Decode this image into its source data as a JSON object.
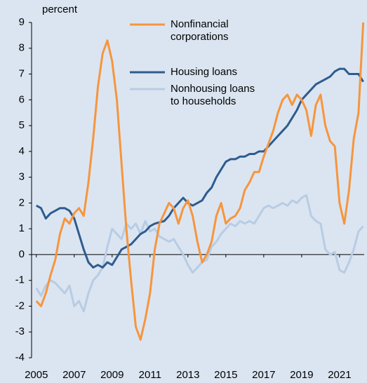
{
  "chart_data": {
    "type": "line",
    "y_label": "percent",
    "x": [
      2005,
      2005.25,
      2005.5,
      2005.75,
      2006,
      2006.25,
      2006.5,
      2006.75,
      2007,
      2007.25,
      2007.5,
      2007.75,
      2008,
      2008.25,
      2008.5,
      2008.75,
      2009,
      2009.25,
      2009.5,
      2009.75,
      2010,
      2010.25,
      2010.5,
      2010.75,
      2011,
      2011.25,
      2011.5,
      2011.75,
      2012,
      2012.25,
      2012.5,
      2012.75,
      2013,
      2013.25,
      2013.5,
      2013.75,
      2014,
      2014.25,
      2014.5,
      2014.75,
      2015,
      2015.25,
      2015.5,
      2015.75,
      2016,
      2016.25,
      2016.5,
      2016.75,
      2017,
      2017.25,
      2017.5,
      2017.75,
      2018,
      2018.25,
      2018.5,
      2018.75,
      2019,
      2019.25,
      2019.5,
      2019.75,
      2020,
      2020.25,
      2020.5,
      2020.75,
      2021,
      2021.25,
      2021.5,
      2021.75,
      2022,
      2022.25
    ],
    "series": [
      {
        "name": "Nonfinancial corporations",
        "color": "#f7953d",
        "values": [
          -1.8,
          -2.0,
          -1.5,
          -0.8,
          -0.2,
          0.8,
          1.4,
          1.2,
          1.6,
          1.8,
          1.5,
          2.8,
          4.5,
          6.5,
          7.8,
          8.3,
          7.5,
          6.0,
          3.5,
          1.0,
          -1.0,
          -2.8,
          -3.3,
          -2.5,
          -1.5,
          0.2,
          1.2,
          1.6,
          2.0,
          1.8,
          1.2,
          1.8,
          2.1,
          1.5,
          0.5,
          -0.3,
          0.0,
          0.5,
          1.5,
          2.0,
          1.2,
          1.4,
          1.5,
          1.8,
          2.5,
          2.8,
          3.2,
          3.2,
          3.8,
          4.3,
          4.8,
          5.5,
          6.0,
          6.2,
          5.8,
          6.2,
          6.0,
          5.6,
          4.6,
          5.8,
          6.2,
          5.0,
          4.4,
          4.2,
          2.0,
          1.2,
          2.5,
          4.5,
          5.5,
          9.0
        ]
      },
      {
        "name": "Housing loans",
        "color": "#2e5c8e",
        "values": [
          1.9,
          1.8,
          1.4,
          1.6,
          1.7,
          1.8,
          1.8,
          1.7,
          1.4,
          0.8,
          0.2,
          -0.3,
          -0.5,
          -0.4,
          -0.5,
          -0.3,
          -0.4,
          -0.1,
          0.2,
          0.3,
          0.4,
          0.6,
          0.8,
          0.9,
          1.1,
          1.2,
          1.25,
          1.3,
          1.5,
          1.8,
          2.0,
          2.2,
          2.0,
          1.9,
          2.0,
          2.1,
          2.4,
          2.6,
          3.0,
          3.3,
          3.6,
          3.7,
          3.7,
          3.8,
          3.8,
          3.9,
          3.9,
          4.0,
          4.0,
          4.2,
          4.4,
          4.6,
          4.8,
          5.0,
          5.3,
          5.6,
          6.0,
          6.2,
          6.4,
          6.6,
          6.7,
          6.8,
          6.9,
          7.1,
          7.2,
          7.2,
          7.0,
          7.0,
          7.0,
          6.7
        ]
      },
      {
        "name": "Nonhousing loans to households",
        "color": "#b8cce4",
        "values": [
          -1.3,
          -1.6,
          -1.2,
          -1.0,
          -1.1,
          -1.3,
          -1.5,
          -1.2,
          -2.0,
          -1.8,
          -2.2,
          -1.5,
          -1.0,
          -0.8,
          -0.5,
          0.3,
          1.0,
          0.8,
          0.6,
          1.2,
          1.0,
          1.2,
          0.8,
          1.3,
          0.9,
          1.0,
          0.7,
          0.6,
          0.5,
          0.6,
          0.3,
          0.0,
          -0.4,
          -0.7,
          -0.5,
          -0.3,
          -0.2,
          0.3,
          0.5,
          0.8,
          1.0,
          1.2,
          1.1,
          1.3,
          1.2,
          1.3,
          1.2,
          1.5,
          1.8,
          1.9,
          1.8,
          1.9,
          2.0,
          1.9,
          2.1,
          2.0,
          2.2,
          2.3,
          1.5,
          1.3,
          1.2,
          0.2,
          0.0,
          0.1,
          -0.6,
          -0.7,
          -0.3,
          0.2,
          0.9,
          1.1
        ]
      }
    ],
    "xlim": [
      2004.75,
      2022.3
    ],
    "xticks": [
      2005,
      2007,
      2009,
      2011,
      2013,
      2015,
      2017,
      2019,
      2021
    ],
    "ylim": [
      -4,
      9
    ],
    "yticks": [
      -4,
      -3,
      -2,
      -1,
      0,
      1,
      2,
      3,
      4,
      5,
      6,
      7,
      8,
      9
    ],
    "grid": false
  }
}
